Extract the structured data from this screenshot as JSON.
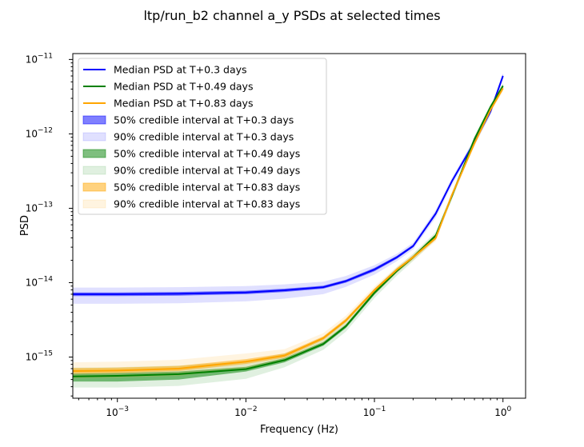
{
  "chart_data": {
    "type": "line",
    "title": "ltp/run_b2 channel a_y PSDs at selected times",
    "xlabel": "Frequency (Hz)",
    "ylabel": "PSD",
    "xscale": "log",
    "yscale": "log",
    "xlim": [
      0.00045,
      1.5
    ],
    "ylim": [
      2.8e-16,
      1.2e-11
    ],
    "grid": false,
    "legend_position": "upper-left",
    "x_ticks": [
      {
        "value": 0.001,
        "base": "10",
        "exp": "−3"
      },
      {
        "value": 0.01,
        "base": "10",
        "exp": "−2"
      },
      {
        "value": 0.1,
        "base": "10",
        "exp": "−1"
      },
      {
        "value": 1,
        "base": "10",
        "exp": "0"
      }
    ],
    "y_ticks": [
      {
        "value": 1e-15,
        "base": "10",
        "exp": "−15"
      },
      {
        "value": 1e-14,
        "base": "10",
        "exp": "−14"
      },
      {
        "value": 1e-13,
        "base": "10",
        "exp": "−13"
      },
      {
        "value": 1e-12,
        "base": "10",
        "exp": "−12"
      },
      {
        "value": 1e-11,
        "base": "10",
        "exp": "−11"
      }
    ],
    "x": [
      0.00045,
      0.001,
      0.003,
      0.01,
      0.02,
      0.04,
      0.06,
      0.1,
      0.15,
      0.2,
      0.3,
      0.4,
      0.6,
      0.8,
      1.0
    ],
    "series": [
      {
        "name": "Median PSD at T+0.3 days",
        "color": "#0000ff",
        "median": [
          7e-15,
          7e-15,
          7.1e-15,
          7.4e-15,
          7.9e-15,
          8.7e-15,
          1.05e-14,
          1.5e-14,
          2.2e-14,
          3.1e-14,
          8.5e-14,
          2.3e-13,
          7.8e-13,
          2e-12,
          6e-12
        ],
        "ci50": [
          [
            6.6e-15,
            6.6e-15,
            6.7e-15,
            7e-15,
            7.5e-15,
            8.3e-15,
            1e-14,
            1.42e-14,
            2.1e-14,
            3e-14,
            8.1e-14,
            2.2e-13,
            7.4e-13,
            1.9e-12,
            5.7e-12
          ],
          [
            7.4e-15,
            7.4e-15,
            7.5e-15,
            7.8e-15,
            8.3e-15,
            9.1e-15,
            1.1e-14,
            1.58e-14,
            2.3e-14,
            3.25e-14,
            8.9e-14,
            2.4e-13,
            8.2e-13,
            2.1e-12,
            6.3e-12
          ]
        ],
        "ci90": [
          [
            5.2e-15,
            5.2e-15,
            5.3e-15,
            5.6e-15,
            6.1e-15,
            7e-15,
            8.8e-15,
            1.28e-14,
            1.95e-14,
            2.8e-14,
            7.5e-14,
            2.05e-13,
            7e-13,
            1.8e-12,
            5.4e-12
          ],
          [
            8.6e-15,
            8.6e-15,
            8.7e-15,
            9e-15,
            9.5e-15,
            1.03e-14,
            1.23e-14,
            1.72e-14,
            2.45e-14,
            3.45e-14,
            9.5e-14,
            2.55e-13,
            8.7e-13,
            2.2e-12,
            6.6e-12
          ]
        ]
      },
      {
        "name": "Median PSD at T+0.49 days",
        "color": "#008000",
        "median": [
          5.5e-16,
          5.6e-16,
          5.9e-16,
          6.9e-16,
          9.1e-16,
          1.5e-15,
          2.6e-15,
          7.3e-15,
          1.45e-14,
          2.2e-14,
          4.3e-14,
          1.45e-13,
          8.5e-13,
          2.3e-12,
          4.4e-12
        ],
        "ci50": [
          [
            4.7e-16,
            4.7e-16,
            5e-16,
            6.4e-16,
            8.5e-16,
            1.42e-15,
            2.45e-15,
            6.9e-15,
            1.38e-14,
            2.1e-14,
            4.1e-14,
            1.38e-13,
            8.1e-13,
            2.2e-12,
            4.2e-12
          ],
          [
            6e-16,
            6.1e-16,
            6.4e-16,
            7.4e-16,
            9.7e-16,
            1.6e-15,
            2.75e-15,
            7.7e-15,
            1.52e-14,
            2.3e-14,
            4.5e-14,
            1.52e-13,
            8.9e-13,
            2.4e-12,
            4.6e-12
          ]
        ],
        "ci90": [
          [
            3.9e-16,
            3.9e-16,
            4.1e-16,
            5.1e-16,
            7.3e-16,
            1.25e-15,
            2.2e-15,
            6.2e-15,
            1.25e-14,
            1.95e-14,
            3.8e-14,
            1.3e-13,
            7.6e-13,
            2.05e-12,
            4e-12
          ],
          [
            7.2e-16,
            7.3e-16,
            7.7e-16,
            8.8e-16,
            1.12e-15,
            1.78e-15,
            3e-15,
            8.3e-15,
            1.62e-14,
            2.45e-14,
            4.8e-14,
            1.6e-13,
            9.4e-13,
            2.5e-12,
            4.8e-12
          ]
        ]
      },
      {
        "name": "Median PSD at T+0.83 days",
        "color": "#ffa500",
        "median": [
          6.5e-16,
          6.6e-16,
          7e-16,
          8.7e-16,
          1.05e-15,
          1.8e-15,
          3.1e-15,
          7.9e-15,
          1.5e-14,
          2.2e-14,
          4e-14,
          1.5e-13,
          7.5e-13,
          2.1e-12,
          4.1e-12
        ],
        "ci50": [
          [
            6e-16,
            6.1e-16,
            6.5e-16,
            8.1e-16,
            9.8e-16,
            1.7e-15,
            2.95e-15,
            7.5e-15,
            1.43e-14,
            2.1e-14,
            3.8e-14,
            1.43e-13,
            7.1e-13,
            2e-12,
            3.9e-12
          ],
          [
            7.1e-16,
            7.2e-16,
            7.6e-16,
            9.4e-16,
            1.12e-15,
            1.9e-15,
            3.3e-15,
            8.3e-15,
            1.57e-14,
            2.3e-14,
            4.2e-14,
            1.57e-13,
            7.9e-13,
            2.2e-12,
            4.3e-12
          ]
        ],
        "ci90": [
          [
            5.2e-16,
            5.3e-16,
            5.6e-16,
            7e-16,
            8.8e-16,
            1.55e-15,
            2.7e-15,
            7e-15,
            1.35e-14,
            2e-14,
            3.6e-14,
            1.35e-13,
            6.8e-13,
            1.9e-12,
            3.7e-12
          ],
          [
            8.5e-16,
            8.7e-16,
            9.2e-16,
            1.12e-15,
            1.28e-15,
            2.1e-15,
            3.6e-15,
            8.9e-15,
            1.65e-14,
            2.4e-14,
            4.5e-14,
            1.65e-13,
            8.3e-13,
            2.3e-12,
            4.5e-12
          ]
        ]
      }
    ],
    "legend": [
      {
        "label": "Median PSD at T+0.3 days",
        "kind": "line",
        "color": "#0000ff"
      },
      {
        "label": "Median PSD at T+0.49 days",
        "kind": "line",
        "color": "#008000"
      },
      {
        "label": "Median PSD at T+0.83 days",
        "kind": "line",
        "color": "#ffa500"
      },
      {
        "label": "50% credible interval at T+0.3 days",
        "kind": "patch50",
        "color": "#0000ff"
      },
      {
        "label": "90% credible interval at T+0.3 days",
        "kind": "patch90",
        "color": "#0000ff"
      },
      {
        "label": "50% credible interval at T+0.49 days",
        "kind": "patch50",
        "color": "#008000"
      },
      {
        "label": "90% credible interval at T+0.49 days",
        "kind": "patch90",
        "color": "#008000"
      },
      {
        "label": "50% credible interval at T+0.83 days",
        "kind": "patch50",
        "color": "#ffa500"
      },
      {
        "label": "90% credible interval at T+0.83 days",
        "kind": "patch90",
        "color": "#ffa500"
      }
    ]
  }
}
